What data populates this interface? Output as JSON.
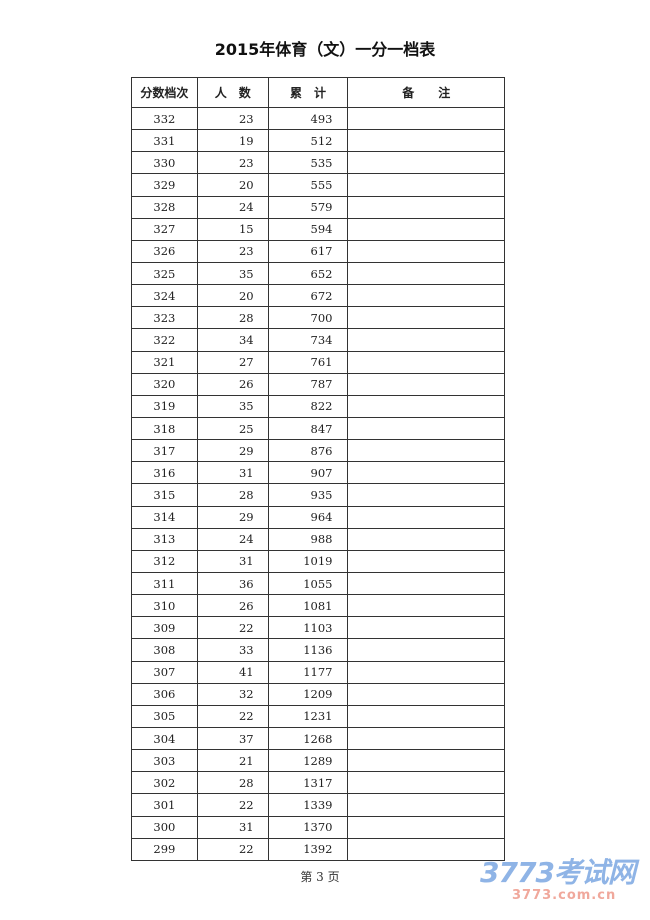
{
  "title": "2015年体育（文）一分一档表",
  "headers": [
    "分数档次",
    "人　数",
    "累　计",
    "备　　注"
  ],
  "rows": [
    [
      "332",
      "23",
      "493"
    ],
    [
      "331",
      "19",
      "512"
    ],
    [
      "330",
      "23",
      "535"
    ],
    [
      "329",
      "20",
      "555"
    ],
    [
      "328",
      "24",
      "579"
    ],
    [
      "327",
      "15",
      "594"
    ],
    [
      "326",
      "23",
      "617"
    ],
    [
      "325",
      "35",
      "652"
    ],
    [
      "324",
      "20",
      "672"
    ],
    [
      "323",
      "28",
      "700"
    ],
    [
      "322",
      "34",
      "734"
    ],
    [
      "321",
      "27",
      "761"
    ],
    [
      "320",
      "26",
      "787"
    ],
    [
      "319",
      "35",
      "822"
    ],
    [
      "318",
      "25",
      "847"
    ],
    [
      "317",
      "29",
      "876"
    ],
    [
      "316",
      "31",
      "907"
    ],
    [
      "315",
      "28",
      "935"
    ],
    [
      "314",
      "29",
      "964"
    ],
    [
      "313",
      "24",
      "988"
    ],
    [
      "312",
      "31",
      "1019"
    ],
    [
      "311",
      "36",
      "1055"
    ],
    [
      "310",
      "26",
      "1081"
    ],
    [
      "309",
      "22",
      "1103"
    ],
    [
      "308",
      "33",
      "1136"
    ],
    [
      "307",
      "41",
      "1177"
    ],
    [
      "306",
      "32",
      "1209"
    ],
    [
      "305",
      "22",
      "1231"
    ],
    [
      "304",
      "37",
      "1268"
    ],
    [
      "303",
      "21",
      "1289"
    ],
    [
      "302",
      "28",
      "1317"
    ],
    [
      "301",
      "22",
      "1339"
    ],
    [
      "300",
      "31",
      "1370"
    ],
    [
      "299",
      "22",
      "1392"
    ]
  ],
  "footer": "第 3 页",
  "watermark": {
    "logo": "3773考试网",
    "url": "3773.com.cn"
  }
}
